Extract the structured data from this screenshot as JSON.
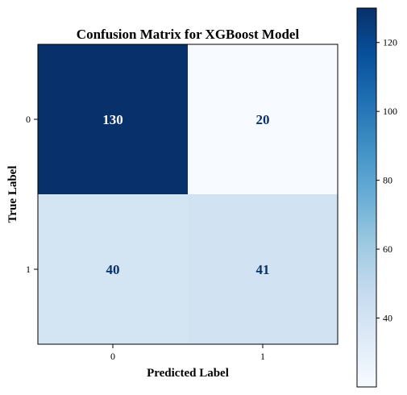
{
  "chart_data": {
    "type": "heatmap",
    "title": "Confusion Matrix for XGBoost Model",
    "xlabel": "Predicted Label",
    "ylabel": "True Label",
    "x_categories": [
      "0",
      "1"
    ],
    "y_categories": [
      "0",
      "1"
    ],
    "values": [
      [
        130,
        20
      ],
      [
        40,
        41
      ]
    ],
    "colormap": "Blues",
    "color_range": [
      20,
      130
    ],
    "colorbar_ticks": [
      40,
      60,
      80,
      100,
      120
    ],
    "colorbar_tick_labels": [
      "40",
      "60",
      "80",
      "100",
      "120"
    ],
    "grid": false,
    "colors": {
      "low": "#f7fbff",
      "high": "#08306b",
      "text_dark_cell": "#ffffff",
      "text_light_cell": "#08306b"
    }
  }
}
